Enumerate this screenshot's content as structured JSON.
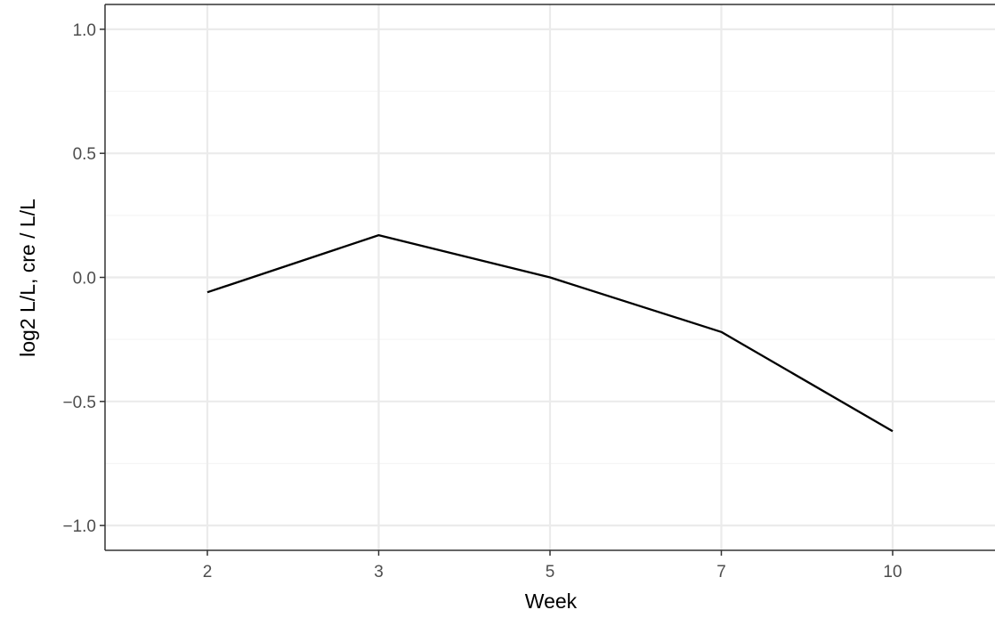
{
  "chart_data": {
    "type": "line",
    "title": "",
    "xlabel": "Week",
    "ylabel": "log2 L/L, cre / L/L",
    "x_tick_labels": [
      "2",
      "3",
      "5",
      "7",
      "10"
    ],
    "y_tick_labels": [
      "−1.0",
      "−0.5",
      "0.0",
      "0.5",
      "1.0"
    ],
    "y_ticks": [
      -1.0,
      -0.5,
      0.0,
      0.5,
      1.0
    ],
    "ylim": [
      -1.1,
      1.1
    ],
    "x_scale": "discrete",
    "grid": true,
    "legend": "none",
    "series": [
      {
        "color": "#000000",
        "x": [
          "2",
          "3",
          "5",
          "7",
          "10"
        ],
        "values": [
          -0.06,
          0.17,
          0.0,
          -0.22,
          -0.62
        ]
      }
    ]
  },
  "colors": {
    "background": "#ffffff",
    "grid_major": "#ebebeb",
    "grid_minor": "#f5f5f5",
    "axis_line": "#333333",
    "tick_text": "#4d4d4d",
    "title_text": "#000000"
  }
}
